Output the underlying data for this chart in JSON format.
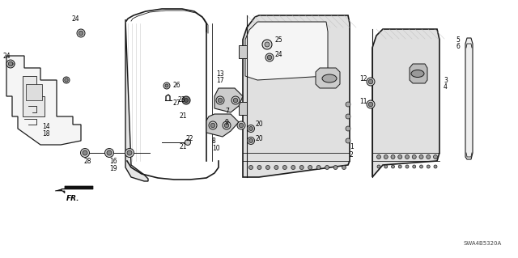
{
  "bg_color": "#ffffff",
  "diagram_code": "SWA4B5320A",
  "fig_width": 6.4,
  "fig_height": 3.19,
  "dpi": 100,
  "lc": "#1a1a1a"
}
